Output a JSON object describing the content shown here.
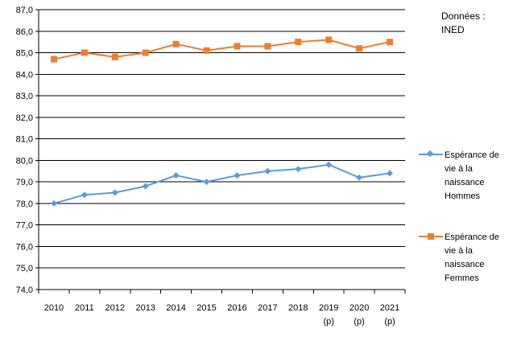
{
  "source_note": {
    "line1": "Données :",
    "line2": "INED"
  },
  "legend": [
    {
      "lines": [
        "Espérance de",
        "vie à la",
        "naissance",
        "Hommes"
      ],
      "color": "#5b9bd5",
      "marker": "diamond"
    },
    {
      "lines": [
        "Espérance de",
        "vie à la",
        "naissance",
        "Femmes"
      ],
      "color": "#ed7d31",
      "marker": "square"
    }
  ],
  "chart_data": {
    "type": "line",
    "categories": [
      [
        "2010"
      ],
      [
        "2011"
      ],
      [
        "2012"
      ],
      [
        "2013"
      ],
      [
        "2014"
      ],
      [
        "2015"
      ],
      [
        "2016"
      ],
      [
        "2017"
      ],
      [
        "2018"
      ],
      [
        "2019",
        "(p)"
      ],
      [
        "2020",
        "(p)"
      ],
      [
        "2021",
        "(p)"
      ]
    ],
    "y_ticks": [
      "74,0",
      "75,0",
      "76,0",
      "77,0",
      "78,0",
      "79,0",
      "80,0",
      "81,0",
      "82,0",
      "83,0",
      "84,0",
      "85,0",
      "86,0",
      "87,0"
    ],
    "ylim": [
      74,
      87
    ],
    "grid": true,
    "legend_position": "right",
    "series": [
      {
        "name": "Espérance de vie à la naissance Hommes",
        "color": "#5b9bd5",
        "marker": "diamond",
        "values": [
          78.0,
          78.4,
          78.5,
          78.8,
          79.3,
          79.0,
          79.3,
          79.5,
          79.6,
          79.8,
          79.2,
          79.4
        ]
      },
      {
        "name": "Espérance de vie à la naissance Femmes",
        "color": "#ed7d31",
        "marker": "square",
        "values": [
          84.7,
          85.0,
          84.8,
          85.0,
          85.4,
          85.1,
          85.3,
          85.3,
          85.5,
          85.6,
          85.2,
          85.5
        ]
      }
    ]
  }
}
